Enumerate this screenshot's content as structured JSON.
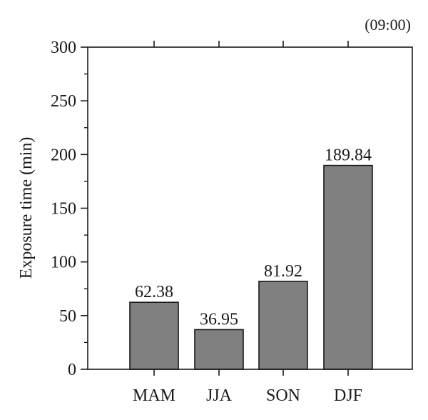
{
  "chart_data": {
    "type": "bar",
    "corner_label": "(09:00)",
    "ylabel": "Exposure time (min)",
    "xlabel": "",
    "categories": [
      "MAM",
      "JJA",
      "SON",
      "DJF"
    ],
    "values": [
      62.38,
      36.95,
      81.92,
      189.84
    ],
    "value_labels": [
      "62.38",
      "36.95",
      "81.92",
      "189.84"
    ],
    "ylim": [
      0,
      300
    ],
    "yticks": [
      0,
      50,
      100,
      150,
      200,
      250,
      300
    ],
    "ytick_labels": [
      "0",
      "50",
      "100",
      "150",
      "200",
      "250",
      "300"
    ],
    "bar_color": "#808080",
    "bar_edge_color": "#1a1a1a",
    "grid": false,
    "legend": "none"
  }
}
